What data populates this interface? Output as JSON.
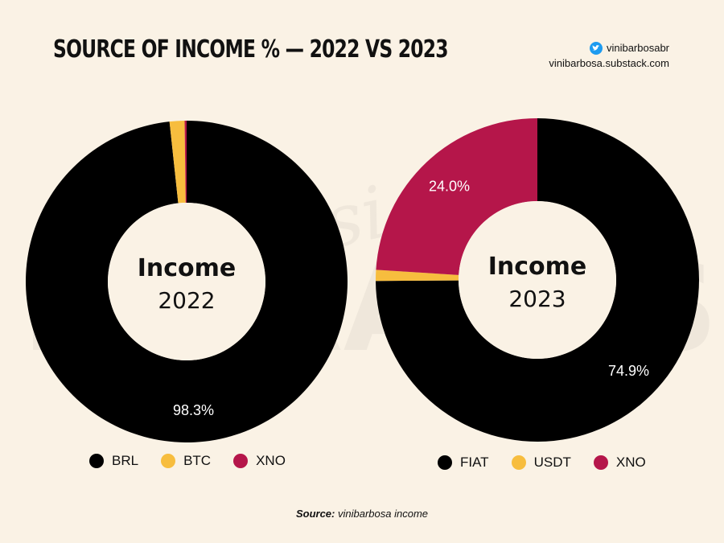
{
  "title": "SOURCE OF INCOME % — 2022 VS 2023",
  "social": {
    "handle": "vinibarbosabr",
    "site": "vinibarbosa.substack.com",
    "icon": "twitter-icon"
  },
  "watermark": {
    "script_text": "design",
    "block_text": "INFRABOS"
  },
  "colors": {
    "background": "#faf2e5",
    "black": "#000000",
    "yellow": "#f7bd3e",
    "crimson": "#b5164a"
  },
  "chart_data": [
    {
      "type": "pie",
      "center_label": {
        "line1": "Income",
        "line2": "2022"
      },
      "labels": [
        "BRL",
        "BTC",
        "XNO"
      ],
      "values": [
        98.3,
        1.5,
        0.2
      ],
      "colors": [
        "#000000",
        "#f7bd3e",
        "#b5164a"
      ],
      "data_labels": [
        "98.3%",
        "",
        ""
      ],
      "legend": "bottom"
    },
    {
      "type": "pie",
      "center_label": {
        "line1": "Income",
        "line2": "2023"
      },
      "labels": [
        "FIAT",
        "USDT",
        "XNO"
      ],
      "values": [
        74.9,
        1.1,
        24.0
      ],
      "colors": [
        "#000000",
        "#f7bd3e",
        "#b5164a"
      ],
      "data_labels": [
        "74.9%",
        "",
        "24.0%"
      ],
      "legend": "bottom"
    }
  ],
  "source": {
    "label": "Source:",
    "text": "vinibarbosa income"
  }
}
